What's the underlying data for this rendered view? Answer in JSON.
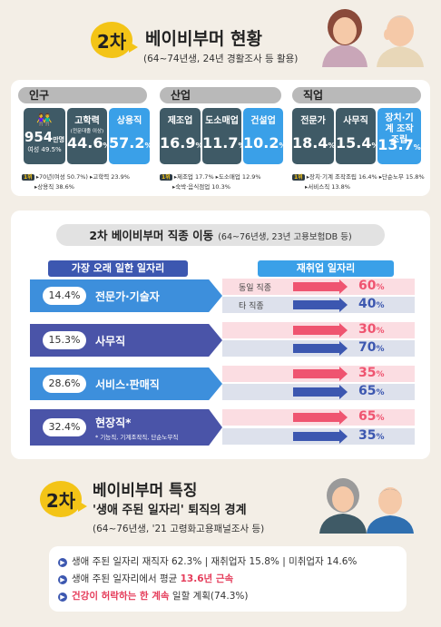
{
  "header": {
    "badge": "2차",
    "title": "베이비부머 현황",
    "subtitle": "(64~74년생, 24년 경활조사 등 활용)"
  },
  "status": {
    "population": {
      "title": "인구",
      "count_value": "954",
      "count_unit": "만명",
      "count_sub": "여성 49.5%",
      "edu_label": "고학력",
      "edu_sub": "(전문대졸 이상)",
      "edu_value": "44.6",
      "reg_label": "상용직",
      "reg_value": "57.2",
      "unit": "%",
      "note_badge": "1위",
      "note1": "▸70년(여성 50.7%) ▸고학력 23.9%",
      "note2": "▸상용직 38.6%"
    },
    "industry": {
      "title": "산업",
      "items": [
        {
          "label": "제조업",
          "value": "16.9"
        },
        {
          "label": "도소매업",
          "value": "11.7"
        },
        {
          "label": "건설업",
          "value": "10.2"
        }
      ],
      "unit": "%",
      "note_badge": "1위",
      "note1": "▸제조업 17.7% ▸도소매업 12.9%",
      "note2": "▸숙박·음식점업 10.3%"
    },
    "occupation": {
      "title": "직업",
      "items": [
        {
          "label": "전문가",
          "value": "18.4"
        },
        {
          "label": "사무직",
          "value": "15.4"
        },
        {
          "label": "장치·기계 조작조립",
          "value": "13.7"
        }
      ],
      "unit": "%",
      "note_badge": "1위",
      "note1": "▸장치·기계 조작조립 16.4% ▸단순노무 15.8%",
      "note2": "▸서비스직 13.8%"
    }
  },
  "mobility": {
    "title": "2차 베이비부머 직종 이동",
    "title_sub": "(64~76년생, 23년 고용보험DB 등)",
    "left_header": "가장 오래 일한 일자리",
    "right_header": "재취업 일자리",
    "same_label": "동일 직종",
    "other_label": "타 직종",
    "rows": [
      {
        "pct": "14.4%",
        "label": "전문가·기술자",
        "extra": "",
        "same": "60",
        "other": "40"
      },
      {
        "pct": "15.3%",
        "label": "사무직",
        "extra": "",
        "same": "30",
        "other": "70"
      },
      {
        "pct": "28.6%",
        "label": "서비스·판매직",
        "extra": "",
        "same": "35",
        "other": "65"
      },
      {
        "pct": "32.4%",
        "label": "현장직*",
        "extra": "* 기능직, 기계조작직, 단순노무직",
        "same": "65",
        "other": "35"
      }
    ],
    "unit": "%"
  },
  "features": {
    "badge": "2차",
    "title": "베이비부머 특징",
    "subtitle1": "'생애 주된 일자리' 퇴직의 경계",
    "subtitle2": "(64~76년생, '21 고령화고용패널조사 등)",
    "bullets": [
      {
        "pre": "생애 주된 일자리 재직자 62.3% | 재취업자 15.8% | 미취업자 14.6%",
        "hl": "",
        "post": ""
      },
      {
        "pre": "생애 주된 일자리에서 평균 ",
        "hl": "13.6년 근속",
        "post": ""
      },
      {
        "pre": "",
        "hl": "건강이 허락하는 한 계속",
        "post": " 일할 계획(74.3%)"
      }
    ]
  },
  "colors": {
    "dark": "#3f5a66",
    "blue": "#3aa0e8",
    "red": "#ef5470",
    "navy": "#3c57b0",
    "yellow": "#f3c417"
  }
}
